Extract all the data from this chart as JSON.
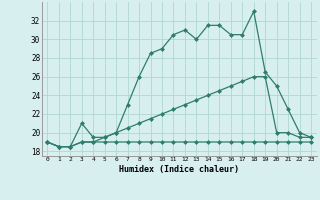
{
  "xlabel": "Humidex (Indice chaleur)",
  "x_values": [
    0,
    1,
    2,
    3,
    4,
    5,
    6,
    7,
    8,
    9,
    10,
    11,
    12,
    13,
    14,
    15,
    16,
    17,
    18,
    19,
    20,
    21,
    22,
    23
  ],
  "line1": [
    19,
    18.5,
    18.5,
    21,
    19.5,
    19.5,
    20,
    23,
    26,
    28.5,
    29,
    30.5,
    31,
    30,
    31.5,
    31.5,
    30.5,
    30.5,
    33,
    26.5,
    25,
    22.5,
    20,
    19.5
  ],
  "line2": [
    19,
    18.5,
    18.5,
    19,
    19,
    19,
    19,
    19,
    19,
    19,
    19,
    19,
    19,
    19,
    19,
    19,
    19,
    19,
    19,
    19,
    19,
    19,
    19,
    19
  ],
  "line3": [
    19,
    18.5,
    18.5,
    19,
    19,
    19.5,
    20,
    20.5,
    21,
    21.5,
    22,
    22.5,
    23,
    23.5,
    24,
    24.5,
    25,
    25.5,
    26,
    26,
    20,
    20,
    19.5,
    19.5
  ],
  "color": "#2e7d6e",
  "bg_color": "#d8efef",
  "grid_color": "#b0d5d5",
  "ylim": [
    17.5,
    34
  ],
  "xlim": [
    -0.5,
    23.5
  ],
  "yticks": [
    18,
    20,
    22,
    24,
    26,
    28,
    30,
    32
  ],
  "xticks": [
    0,
    1,
    2,
    3,
    4,
    5,
    6,
    7,
    8,
    9,
    10,
    11,
    12,
    13,
    14,
    15,
    16,
    17,
    18,
    19,
    20,
    21,
    22,
    23
  ]
}
